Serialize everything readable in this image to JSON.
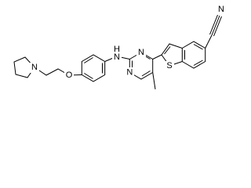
{
  "atoms": [
    {
      "label": "N"
    },
    {
      "label": "S"
    },
    {
      "label": "N"
    },
    {
      "label": "N"
    },
    {
      "label": "N"
    },
    {
      "label": "H"
    },
    {
      "label": "O"
    },
    {
      "label": "N"
    }
  ]
}
